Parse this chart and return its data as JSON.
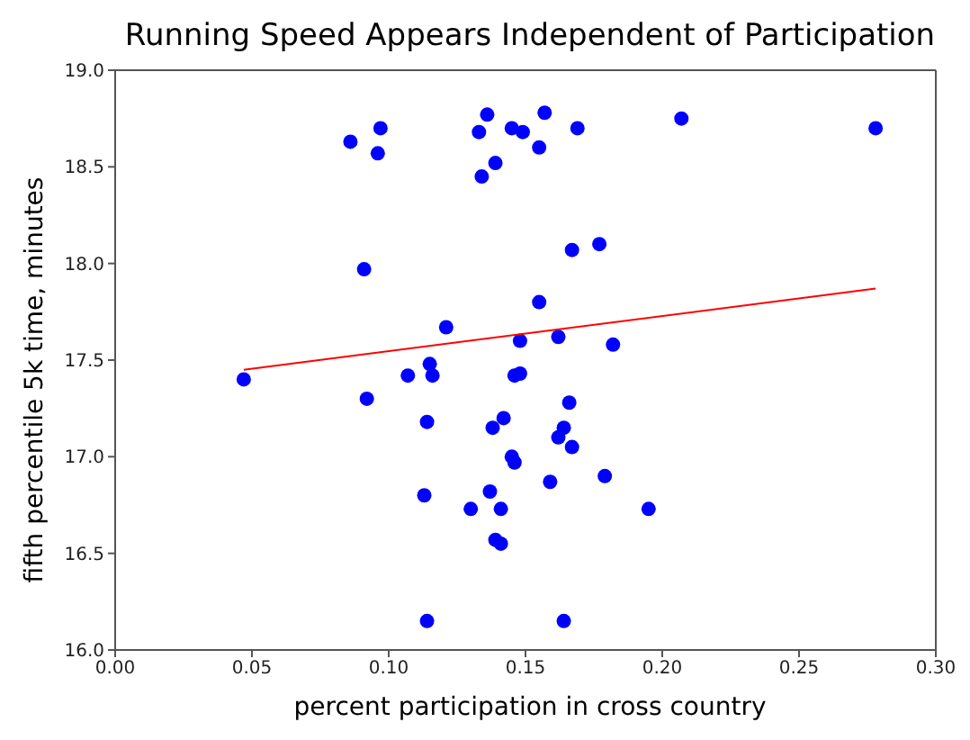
{
  "chart_data": {
    "type": "scatter",
    "title": "Running Speed Appears Independent of Participation",
    "xlabel": "percent participation in cross country",
    "ylabel": "fifth percentile 5k time, minutes",
    "xlim": [
      0,
      0.3
    ],
    "xticks": [
      {
        "value": 0,
        "label": "0.00"
      },
      {
        "value": 0.05,
        "label": "0.05"
      },
      {
        "value": 0.1,
        "label": "0.10"
      },
      {
        "value": 0.15,
        "label": "0.15"
      },
      {
        "value": 0.2,
        "label": "0.20"
      },
      {
        "value": 0.25,
        "label": "0.25"
      },
      {
        "value": 0.3,
        "label": "0.30"
      }
    ],
    "ylim": [
      16,
      19
    ],
    "yticks": [
      {
        "value": 16,
        "label": "16.0"
      },
      {
        "value": 16.5,
        "label": "16.5"
      },
      {
        "value": 17,
        "label": "17.0"
      },
      {
        "value": 17.5,
        "label": "17.5"
      },
      {
        "value": 18,
        "label": "18.0"
      },
      {
        "value": 18.5,
        "label": "18.5"
      },
      {
        "value": 19,
        "label": "19.0"
      }
    ],
    "grid": false,
    "marker": "circle",
    "series": [
      {
        "color": "#0000ff",
        "x": [
          0.047,
          0.086,
          0.091,
          0.092,
          0.096,
          0.097,
          0.107,
          0.113,
          0.114,
          0.114,
          0.115,
          0.116,
          0.121,
          0.13,
          0.133,
          0.134,
          0.136,
          0.137,
          0.138,
          0.139,
          0.139,
          0.141,
          0.141,
          0.142,
          0.145,
          0.145,
          0.146,
          0.146,
          0.148,
          0.148,
          0.149,
          0.155,
          0.155,
          0.157,
          0.159,
          0.162,
          0.162,
          0.164,
          0.164,
          0.166,
          0.167,
          0.167,
          0.169,
          0.177,
          0.179,
          0.182,
          0.195,
          0.207,
          0.278
        ],
        "values": [
          17.4,
          18.63,
          17.97,
          17.3,
          18.57,
          18.7,
          17.42,
          16.8,
          17.18,
          16.15,
          17.48,
          17.42,
          17.67,
          16.73,
          18.68,
          18.45,
          18.77,
          16.82,
          17.15,
          18.52,
          16.57,
          16.55,
          16.73,
          17.2,
          18.7,
          17.0,
          17.42,
          16.97,
          17.43,
          17.6,
          18.68,
          18.6,
          17.8,
          18.78,
          16.87,
          17.62,
          17.1,
          17.15,
          16.15,
          17.28,
          18.07,
          17.05,
          18.7,
          18.1,
          16.9,
          17.58,
          16.73,
          18.75,
          18.7
        ]
      },
      {
        "type": "line",
        "color": "#ff0000",
        "marker": "none",
        "line_style": "solid",
        "x": [
          0.047,
          0.278
        ],
        "values": [
          17.45,
          17.87
        ]
      }
    ]
  }
}
